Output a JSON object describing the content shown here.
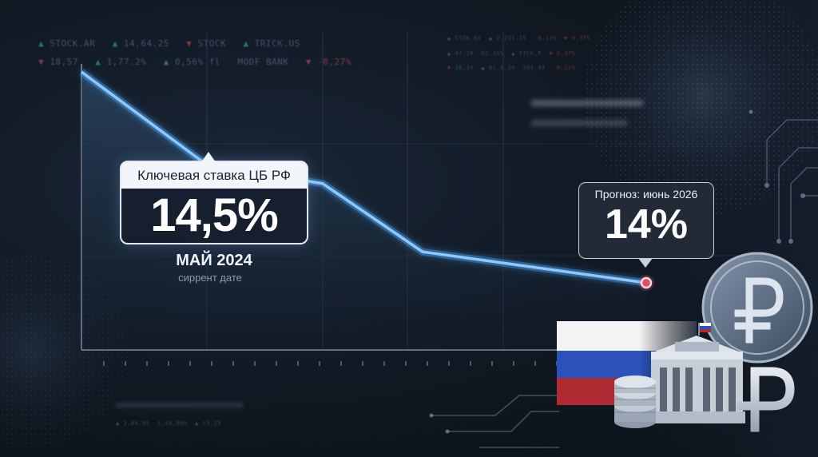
{
  "tickers": {
    "left_row1": [
      {
        "text": "STOCK.AR",
        "dir": "up"
      },
      {
        "text": "14,64.25",
        "dir": "up"
      },
      {
        "text": "STOCK",
        "dir": "dn"
      },
      {
        "text": "TRICK.US",
        "dir": "up"
      }
    ],
    "left_row2": [
      {
        "text": "18,57",
        "dir": "dn"
      },
      {
        "text": "1,77.2%",
        "dir": "up"
      },
      {
        "text": "0,56% fl",
        "dir": "up"
      },
      {
        "text": "MODF BANK",
        "dir": "none"
      },
      {
        "text": "-0,27%",
        "dir": "dn"
      }
    ],
    "right_row1": [
      {
        "text": "STOK.85",
        "dir": "up"
      },
      {
        "text": "2,231.15",
        "dir": "up"
      },
      {
        "text": "-0,13%",
        "dir": "dn"
      },
      {
        "text": "0,37%",
        "dir": "dn"
      }
    ],
    "right_row2": [
      {
        "text": "47,28",
        "dir": "up"
      },
      {
        "text": "62,35%",
        "dir": "up"
      },
      {
        "text": "TTCK.R",
        "dir": "up"
      },
      {
        "text": "0,37%",
        "dir": "dn"
      }
    ],
    "right_row3": [
      {
        "text": "30,24",
        "dir": "dn"
      },
      {
        "text": "81.6,24",
        "dir": "up"
      },
      {
        "text": "103,43",
        "dir": "none"
      },
      {
        "text": "-0,21%",
        "dir": "dn"
      }
    ],
    "bottom_row": [
      {
        "text": "2,88,05",
        "dir": "up"
      },
      {
        "text": "1,59,89%",
        "dir": "up"
      },
      {
        "text": "15,25",
        "dir": "up"
      }
    ]
  },
  "current_rate": {
    "label": "Ключевая ставка ЦБ РФ",
    "value": "14,5%",
    "date": "МАЙ 2024",
    "sub": "сиррент дате"
  },
  "forecast": {
    "label": "Прогноз: июнь 2026",
    "value": "14%"
  },
  "chart_data": {
    "type": "line",
    "title": "",
    "xlabel": "",
    "ylabel": "",
    "series": [
      {
        "values": [
          16.0,
          14.5,
          14.2,
          13.1,
          12.6
        ]
      }
    ],
    "x": [
      0,
      1,
      2,
      3,
      4
    ],
    "ylim": [
      11,
      16.5
    ],
    "grid": true,
    "colors": {
      "line": "#8fc8ff",
      "glow": "#4aa8ff",
      "start_marker": "#6fb8ff",
      "end_marker": "#e24a5e"
    }
  },
  "icons": [
    "russia-flag-icon",
    "central-bank-building-icon",
    "ruble-coin-icon",
    "ruble-sign-icon",
    "coin-stack-icon",
    "globe-icon"
  ]
}
